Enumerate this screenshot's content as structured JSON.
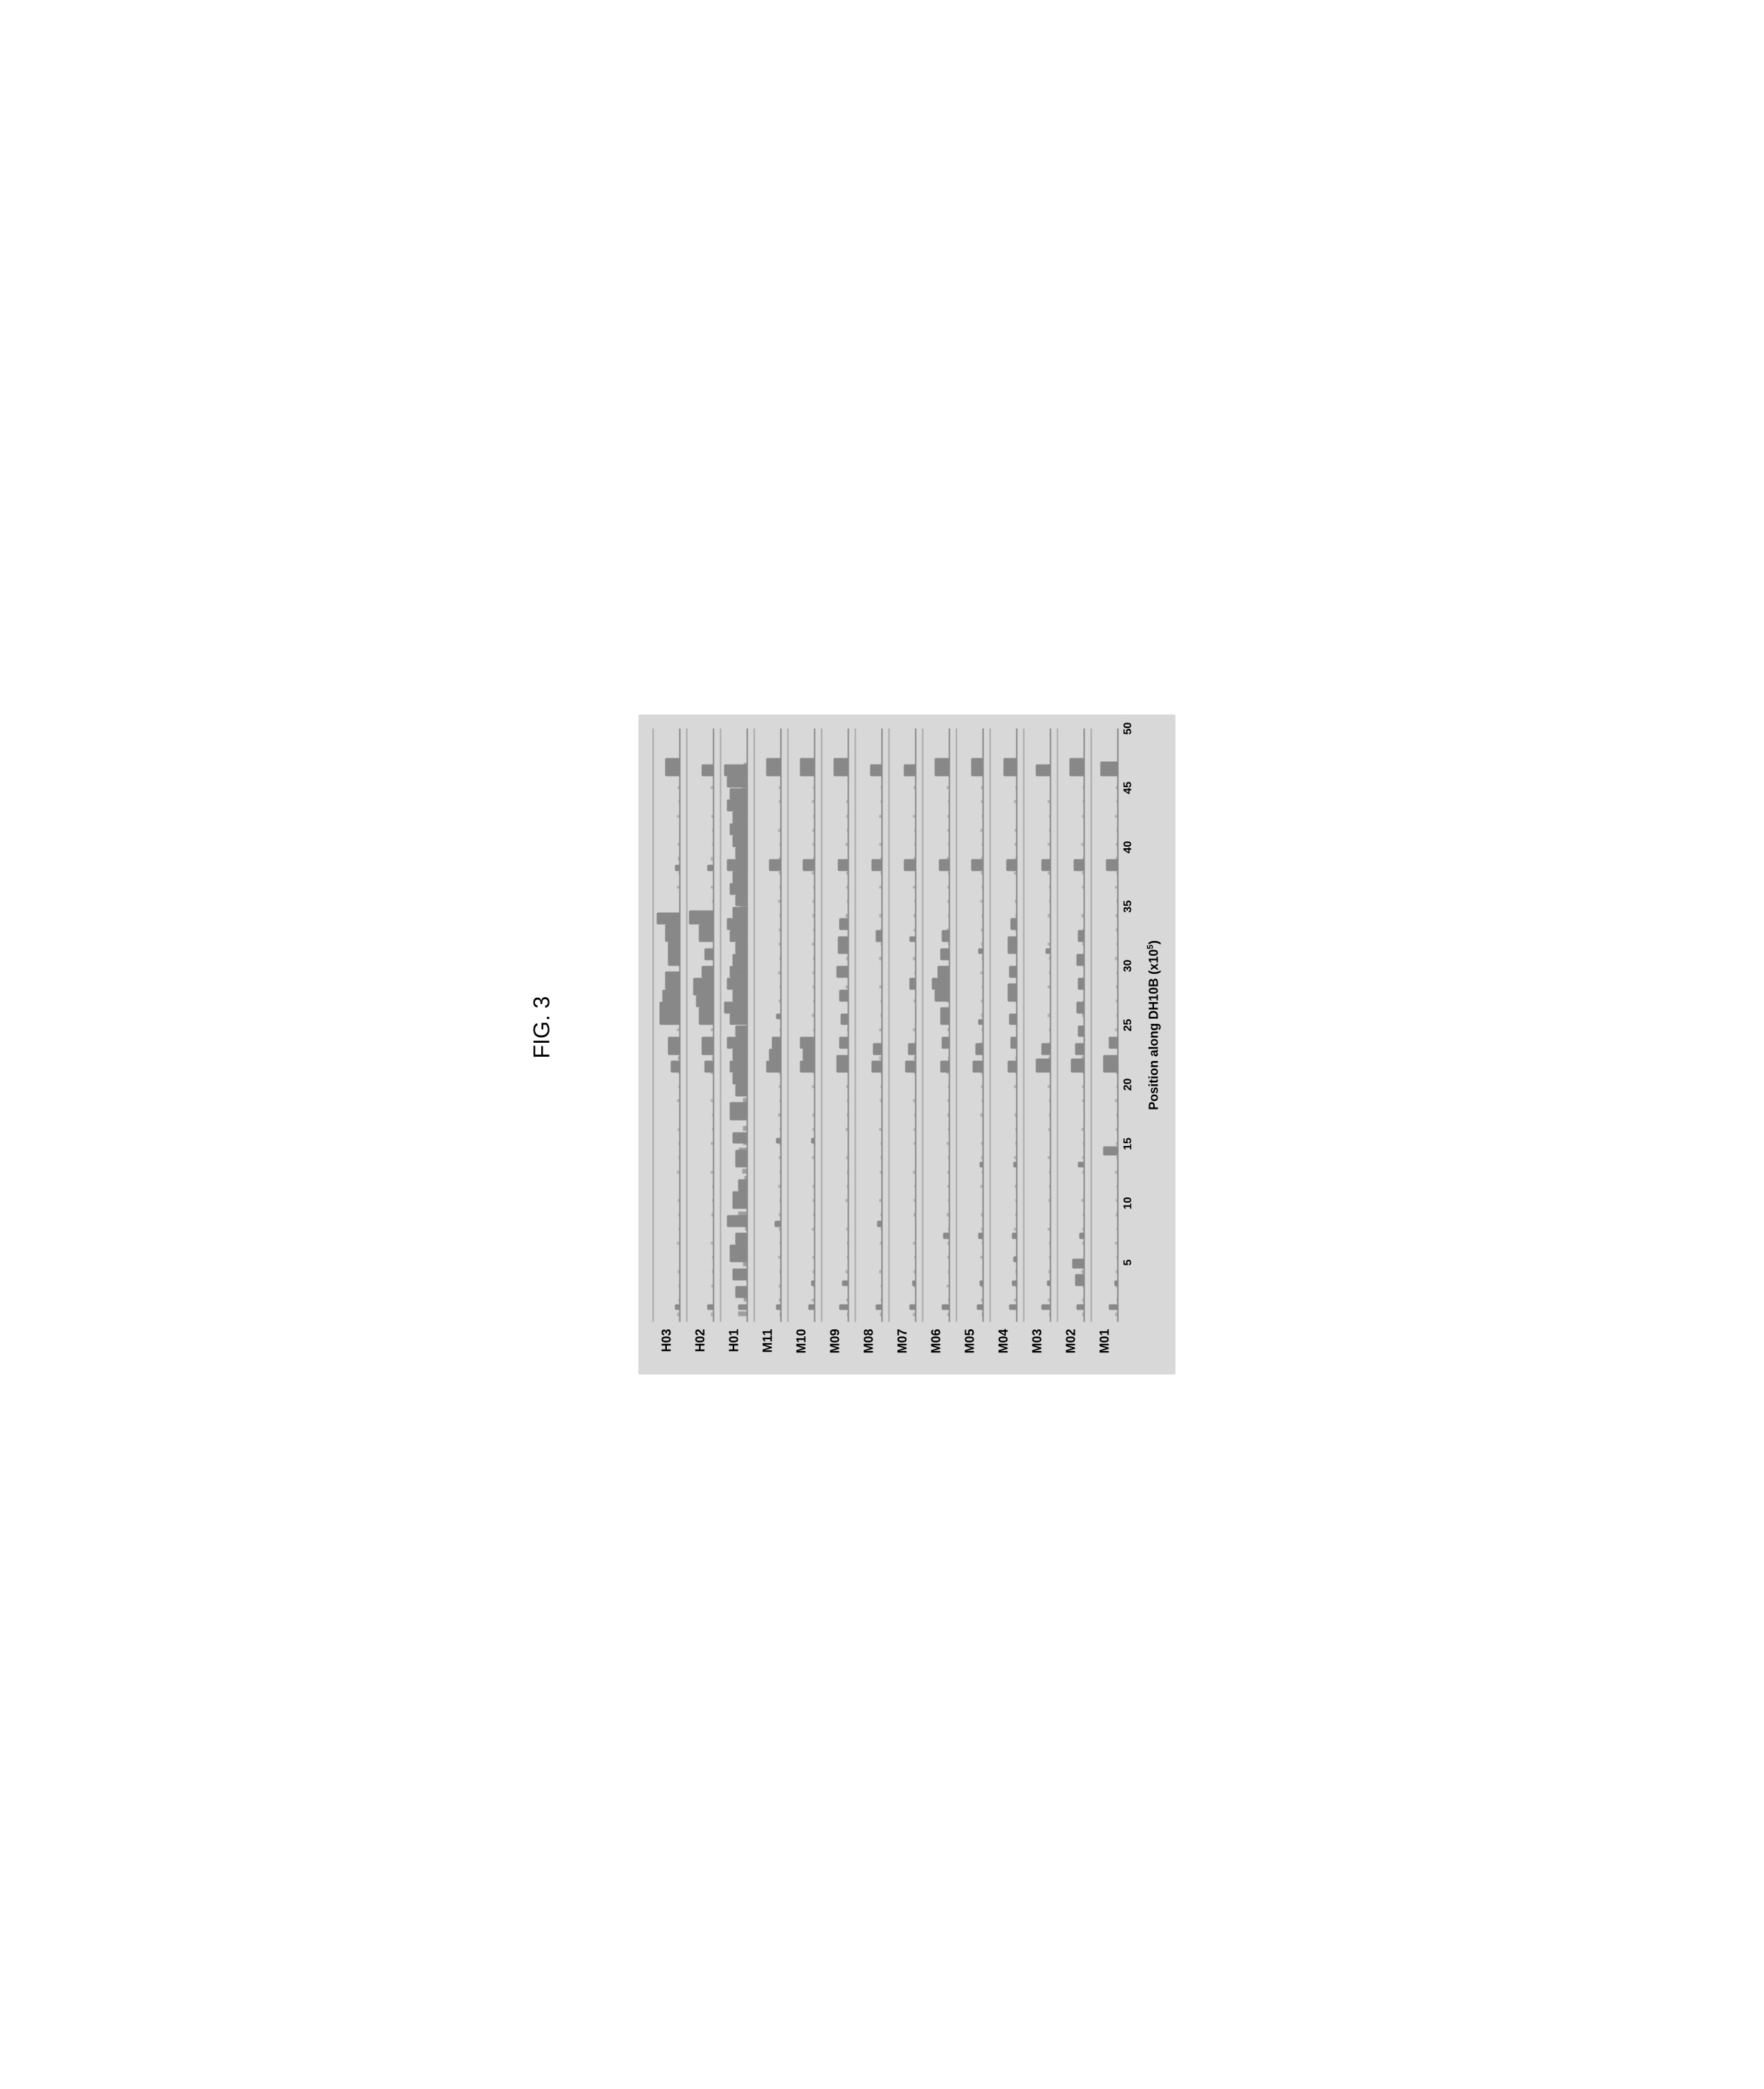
{
  "figure": {
    "label": "FIG. 3",
    "chart_type": "multi-track-coverage-plot",
    "orientation": "rotated-90-ccw",
    "background_color": "#d8d8d8",
    "track_color": "#888888",
    "text_color": "#000000",
    "x_axis": {
      "label": "Position along DH10B (x10⁵)",
      "label_fontsize": 18,
      "ticks": [
        5,
        10,
        15,
        20,
        25,
        30,
        35,
        40,
        45,
        50
      ],
      "tick_fontsize": 16,
      "range": [
        0,
        50
      ]
    },
    "tracks": [
      {
        "label": "H03",
        "peaks": [
          {
            "x": 1,
            "h": 0.15,
            "w": 0.5
          },
          {
            "x": 21,
            "h": 0.3,
            "w": 1
          },
          {
            "x": 22.5,
            "h": 0.4,
            "w": 1.5
          },
          {
            "x": 25,
            "h": 0.7,
            "w": 2
          },
          {
            "x": 27,
            "h": 0.6,
            "w": 1
          },
          {
            "x": 28,
            "h": 0.5,
            "w": 1.5
          },
          {
            "x": 30,
            "h": 0.4,
            "w": 2
          },
          {
            "x": 32,
            "h": 0.5,
            "w": 1.5
          },
          {
            "x": 33.5,
            "h": 0.8,
            "w": 1
          },
          {
            "x": 38,
            "h": 0.15,
            "w": 0.5
          },
          {
            "x": 46,
            "h": 0.5,
            "w": 1.5
          }
        ]
      },
      {
        "label": "H02",
        "peaks": [
          {
            "x": 1,
            "h": 0.2,
            "w": 0.5
          },
          {
            "x": 21,
            "h": 0.3,
            "w": 1
          },
          {
            "x": 22.5,
            "h": 0.4,
            "w": 1.5
          },
          {
            "x": 25,
            "h": 0.5,
            "w": 1.5
          },
          {
            "x": 26.5,
            "h": 0.6,
            "w": 1
          },
          {
            "x": 27.5,
            "h": 0.7,
            "w": 1.5
          },
          {
            "x": 29,
            "h": 0.4,
            "w": 1
          },
          {
            "x": 30.5,
            "h": 0.3,
            "w": 1
          },
          {
            "x": 32,
            "h": 0.5,
            "w": 1.5
          },
          {
            "x": 33.5,
            "h": 0.85,
            "w": 1.2
          },
          {
            "x": 38,
            "h": 0.2,
            "w": 0.5
          },
          {
            "x": 46,
            "h": 0.4,
            "w": 1
          }
        ]
      },
      {
        "label": "H01",
        "density": "high",
        "peaks": [
          {
            "x": 1,
            "h": 0.3,
            "w": 0.5
          },
          {
            "x": 2,
            "h": 0.4,
            "w": 1
          },
          {
            "x": 3.5,
            "h": 0.5,
            "w": 1
          },
          {
            "x": 5,
            "h": 0.6,
            "w": 1.5
          },
          {
            "x": 6.5,
            "h": 0.4,
            "w": 1
          },
          {
            "x": 8,
            "h": 0.7,
            "w": 1
          },
          {
            "x": 9.5,
            "h": 0.5,
            "w": 1.5
          },
          {
            "x": 11,
            "h": 0.3,
            "w": 1
          },
          {
            "x": 13,
            "h": 0.4,
            "w": 1.5
          },
          {
            "x": 15,
            "h": 0.5,
            "w": 1
          },
          {
            "x": 17,
            "h": 0.6,
            "w": 1.5
          },
          {
            "x": 19,
            "h": 0.4,
            "w": 1
          },
          {
            "x": 20,
            "h": 0.5,
            "w": 1
          },
          {
            "x": 21,
            "h": 0.6,
            "w": 1
          },
          {
            "x": 22,
            "h": 0.5,
            "w": 1
          },
          {
            "x": 23,
            "h": 0.7,
            "w": 1
          },
          {
            "x": 24,
            "h": 0.4,
            "w": 1
          },
          {
            "x": 25,
            "h": 0.6,
            "w": 1
          },
          {
            "x": 26,
            "h": 0.8,
            "w": 1
          },
          {
            "x": 27,
            "h": 0.5,
            "w": 1
          },
          {
            "x": 28,
            "h": 0.7,
            "w": 1
          },
          {
            "x": 29,
            "h": 0.6,
            "w": 1
          },
          {
            "x": 30,
            "h": 0.5,
            "w": 1
          },
          {
            "x": 31,
            "h": 0.4,
            "w": 1
          },
          {
            "x": 32,
            "h": 0.6,
            "w": 1
          },
          {
            "x": 33,
            "h": 0.7,
            "w": 1
          },
          {
            "x": 34,
            "h": 0.5,
            "w": 1
          },
          {
            "x": 35,
            "h": 0.4,
            "w": 1
          },
          {
            "x": 36,
            "h": 0.6,
            "w": 1
          },
          {
            "x": 37,
            "h": 0.5,
            "w": 1
          },
          {
            "x": 38,
            "h": 0.7,
            "w": 1
          },
          {
            "x": 39,
            "h": 0.4,
            "w": 1
          },
          {
            "x": 40,
            "h": 0.5,
            "w": 1
          },
          {
            "x": 41,
            "h": 0.6,
            "w": 1
          },
          {
            "x": 42,
            "h": 0.5,
            "w": 1
          },
          {
            "x": 43,
            "h": 0.7,
            "w": 1
          },
          {
            "x": 44,
            "h": 0.6,
            "w": 1
          },
          {
            "x": 45,
            "h": 0.7,
            "w": 1
          },
          {
            "x": 46,
            "h": 0.8,
            "w": 1
          }
        ]
      },
      {
        "label": "M11",
        "peaks": [
          {
            "x": 1,
            "h": 0.15,
            "w": 0.5
          },
          {
            "x": 8,
            "h": 0.2,
            "w": 0.5
          },
          {
            "x": 15,
            "h": 0.15,
            "w": 0.5
          },
          {
            "x": 21,
            "h": 0.5,
            "w": 1
          },
          {
            "x": 22,
            "h": 0.4,
            "w": 1
          },
          {
            "x": 23,
            "h": 0.3,
            "w": 1
          },
          {
            "x": 25.5,
            "h": 0.15,
            "w": 0.5
          },
          {
            "x": 38,
            "h": 0.4,
            "w": 1
          },
          {
            "x": 46,
            "h": 0.5,
            "w": 1.5
          }
        ]
      },
      {
        "label": "M10",
        "peaks": [
          {
            "x": 1,
            "h": 0.2,
            "w": 0.5
          },
          {
            "x": 3,
            "h": 0.1,
            "w": 0.5
          },
          {
            "x": 15,
            "h": 0.1,
            "w": 0.5
          },
          {
            "x": 21,
            "h": 0.5,
            "w": 1
          },
          {
            "x": 22,
            "h": 0.4,
            "w": 1
          },
          {
            "x": 23,
            "h": 0.5,
            "w": 1
          },
          {
            "x": 38,
            "h": 0.4,
            "w": 1
          },
          {
            "x": 46,
            "h": 0.5,
            "w": 1.5
          }
        ]
      },
      {
        "label": "M09",
        "peaks": [
          {
            "x": 1,
            "h": 0.3,
            "w": 0.5
          },
          {
            "x": 3,
            "h": 0.2,
            "w": 0.5
          },
          {
            "x": 21,
            "h": 0.4,
            "w": 1.5
          },
          {
            "x": 23,
            "h": 0.3,
            "w": 1
          },
          {
            "x": 25,
            "h": 0.25,
            "w": 1
          },
          {
            "x": 27,
            "h": 0.3,
            "w": 1
          },
          {
            "x": 29,
            "h": 0.4,
            "w": 1
          },
          {
            "x": 31,
            "h": 0.35,
            "w": 1.5
          },
          {
            "x": 33,
            "h": 0.3,
            "w": 1
          },
          {
            "x": 38,
            "h": 0.35,
            "w": 1
          },
          {
            "x": 46,
            "h": 0.5,
            "w": 1.5
          }
        ]
      },
      {
        "label": "M08",
        "peaks": [
          {
            "x": 1,
            "h": 0.2,
            "w": 0.5
          },
          {
            "x": 8,
            "h": 0.15,
            "w": 0.5
          },
          {
            "x": 21,
            "h": 0.35,
            "w": 1
          },
          {
            "x": 22.5,
            "h": 0.3,
            "w": 1
          },
          {
            "x": 32,
            "h": 0.2,
            "w": 1
          },
          {
            "x": 38,
            "h": 0.35,
            "w": 1
          },
          {
            "x": 46,
            "h": 0.4,
            "w": 1
          }
        ]
      },
      {
        "label": "M07",
        "peaks": [
          {
            "x": 1,
            "h": 0.2,
            "w": 0.5
          },
          {
            "x": 3,
            "h": 0.1,
            "w": 0.5
          },
          {
            "x": 21,
            "h": 0.35,
            "w": 1
          },
          {
            "x": 22.5,
            "h": 0.25,
            "w": 1
          },
          {
            "x": 28,
            "h": 0.2,
            "w": 1
          },
          {
            "x": 32,
            "h": 0.2,
            "w": 0.5
          },
          {
            "x": 38,
            "h": 0.4,
            "w": 1
          },
          {
            "x": 46,
            "h": 0.4,
            "w": 1
          }
        ]
      },
      {
        "label": "M06",
        "peaks": [
          {
            "x": 1,
            "h": 0.25,
            "w": 0.5
          },
          {
            "x": 7,
            "h": 0.2,
            "w": 0.5
          },
          {
            "x": 21,
            "h": 0.3,
            "w": 1
          },
          {
            "x": 23,
            "h": 0.25,
            "w": 1
          },
          {
            "x": 25,
            "h": 0.3,
            "w": 1.5
          },
          {
            "x": 27,
            "h": 0.5,
            "w": 1
          },
          {
            "x": 28,
            "h": 0.6,
            "w": 1
          },
          {
            "x": 29,
            "h": 0.4,
            "w": 1
          },
          {
            "x": 30.5,
            "h": 0.3,
            "w": 1
          },
          {
            "x": 32,
            "h": 0.25,
            "w": 1
          },
          {
            "x": 38,
            "h": 0.35,
            "w": 1
          },
          {
            "x": 46,
            "h": 0.5,
            "w": 1.5
          }
        ]
      },
      {
        "label": "M05",
        "peaks": [
          {
            "x": 1,
            "h": 0.2,
            "w": 0.5
          },
          {
            "x": 3,
            "h": 0.1,
            "w": 0.5
          },
          {
            "x": 7,
            "h": 0.15,
            "w": 0.5
          },
          {
            "x": 13,
            "h": 0.1,
            "w": 0.5
          },
          {
            "x": 21,
            "h": 0.35,
            "w": 1
          },
          {
            "x": 22.5,
            "h": 0.25,
            "w": 1
          },
          {
            "x": 25,
            "h": 0.15,
            "w": 0.5
          },
          {
            "x": 31,
            "h": 0.15,
            "w": 0.5
          },
          {
            "x": 38,
            "h": 0.4,
            "w": 1
          },
          {
            "x": 46,
            "h": 0.4,
            "w": 1.5
          }
        ]
      },
      {
        "label": "M04",
        "peaks": [
          {
            "x": 1,
            "h": 0.25,
            "w": 0.5
          },
          {
            "x": 3,
            "h": 0.15,
            "w": 0.5
          },
          {
            "x": 5,
            "h": 0.1,
            "w": 0.5
          },
          {
            "x": 7,
            "h": 0.15,
            "w": 0.5
          },
          {
            "x": 13,
            "h": 0.1,
            "w": 0.5
          },
          {
            "x": 21,
            "h": 0.3,
            "w": 1
          },
          {
            "x": 23,
            "h": 0.2,
            "w": 1
          },
          {
            "x": 25,
            "h": 0.25,
            "w": 1
          },
          {
            "x": 27,
            "h": 0.3,
            "w": 1.5
          },
          {
            "x": 29,
            "h": 0.25,
            "w": 1
          },
          {
            "x": 31,
            "h": 0.3,
            "w": 1.5
          },
          {
            "x": 33,
            "h": 0.2,
            "w": 1
          },
          {
            "x": 38,
            "h": 0.35,
            "w": 1
          },
          {
            "x": 46,
            "h": 0.45,
            "w": 1.5
          }
        ]
      },
      {
        "label": "M03",
        "peaks": [
          {
            "x": 1,
            "h": 0.3,
            "w": 0.5
          },
          {
            "x": 3,
            "h": 0.1,
            "w": 0.5
          },
          {
            "x": 21,
            "h": 0.5,
            "w": 1.2
          },
          {
            "x": 22.5,
            "h": 0.3,
            "w": 1
          },
          {
            "x": 31,
            "h": 0.15,
            "w": 0.5
          },
          {
            "x": 38,
            "h": 0.3,
            "w": 1
          },
          {
            "x": 46,
            "h": 0.5,
            "w": 1
          }
        ]
      },
      {
        "label": "M02",
        "peaks": [
          {
            "x": 1,
            "h": 0.25,
            "w": 0.5
          },
          {
            "x": 3,
            "h": 0.3,
            "w": 1
          },
          {
            "x": 4.5,
            "h": 0.4,
            "w": 0.8
          },
          {
            "x": 7,
            "h": 0.15,
            "w": 0.5
          },
          {
            "x": 13,
            "h": 0.2,
            "w": 0.5
          },
          {
            "x": 21,
            "h": 0.45,
            "w": 1.2
          },
          {
            "x": 22.5,
            "h": 0.3,
            "w": 1
          },
          {
            "x": 24,
            "h": 0.2,
            "w": 1
          },
          {
            "x": 26,
            "h": 0.25,
            "w": 1
          },
          {
            "x": 28,
            "h": 0.2,
            "w": 1
          },
          {
            "x": 30,
            "h": 0.25,
            "w": 1
          },
          {
            "x": 32,
            "h": 0.2,
            "w": 1
          },
          {
            "x": 38,
            "h": 0.35,
            "w": 1
          },
          {
            "x": 46,
            "h": 0.5,
            "w": 1.5
          }
        ]
      },
      {
        "label": "M01",
        "peaks": [
          {
            "x": 1,
            "h": 0.3,
            "w": 0.5
          },
          {
            "x": 3,
            "h": 0.1,
            "w": 0.5
          },
          {
            "x": 14,
            "h": 0.5,
            "w": 0.8
          },
          {
            "x": 21,
            "h": 0.5,
            "w": 1.5
          },
          {
            "x": 23,
            "h": 0.3,
            "w": 1
          },
          {
            "x": 38,
            "h": 0.4,
            "w": 1
          },
          {
            "x": 46,
            "h": 0.6,
            "w": 1.2
          }
        ]
      }
    ]
  }
}
